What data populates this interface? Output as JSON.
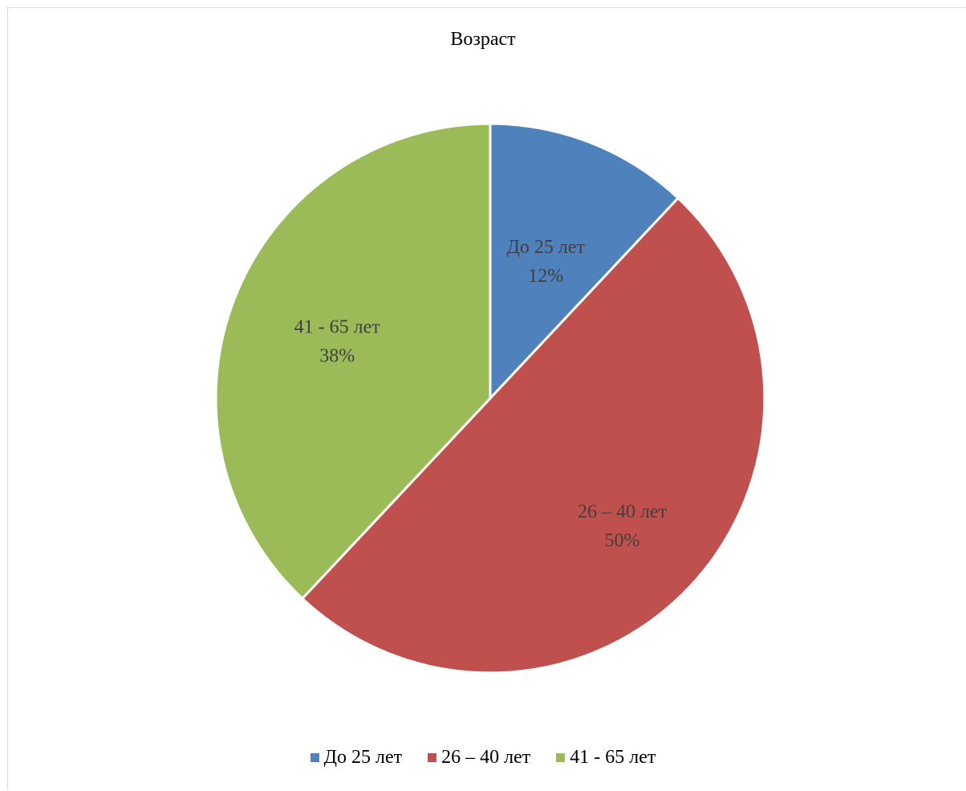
{
  "chart_data": {
    "type": "pie",
    "title": "Возраст",
    "categories": [
      "До 25 лет",
      "26 – 40 лет",
      "41 - 65 лет"
    ],
    "values": [
      12,
      50,
      38
    ],
    "value_labels": [
      "12%",
      "50%",
      "38%"
    ],
    "colors": [
      "#4f81bd",
      "#c0504d",
      "#9bbb59"
    ],
    "legend_position": "bottom",
    "start_angle": "12 o'clock, clockwise"
  }
}
